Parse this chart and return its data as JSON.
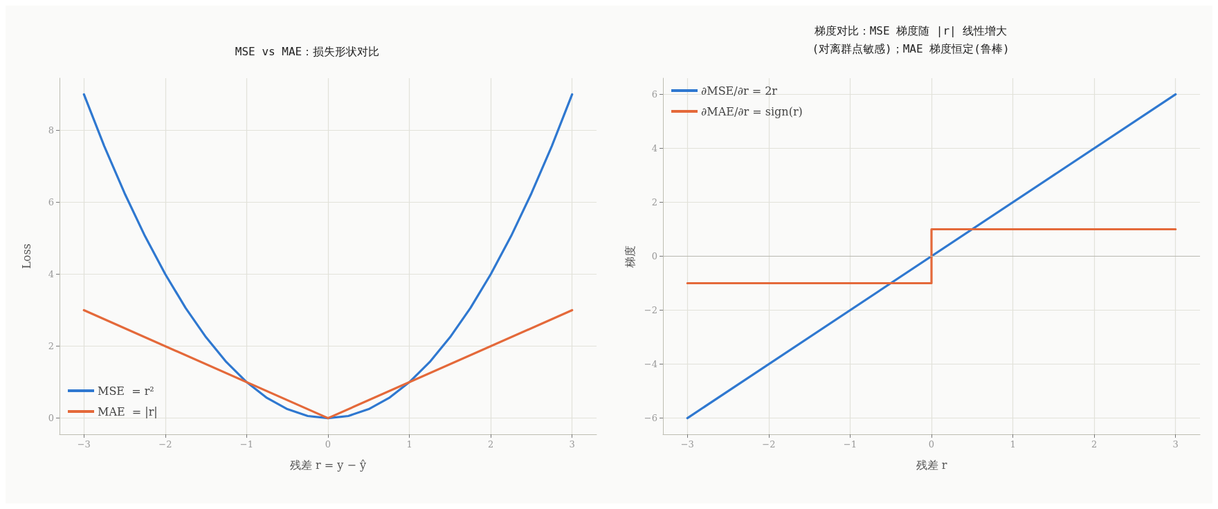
{
  "chart_data": [
    {
      "type": "line",
      "title": "MSE vs MAE：损失形状对比",
      "xlabel": "残差 r = y − ŷ",
      "ylabel": "Loss",
      "series": [
        {
          "name": "MSE  = r²",
          "color": "#2f78d0",
          "x": [
            -3,
            -2.75,
            -2.5,
            -2.25,
            -2,
            -1.75,
            -1.5,
            -1.25,
            -1,
            -0.75,
            -0.5,
            -0.25,
            0,
            0.25,
            0.5,
            0.75,
            1,
            1.25,
            1.5,
            1.75,
            2,
            2.25,
            2.5,
            2.75,
            3
          ],
          "values": [
            9,
            7.56,
            6.25,
            5.06,
            4,
            3.06,
            2.25,
            1.56,
            1,
            0.56,
            0.25,
            0.06,
            0,
            0.06,
            0.25,
            0.56,
            1,
            1.56,
            2.25,
            3.06,
            4,
            5.06,
            6.25,
            7.56,
            9
          ]
        },
        {
          "name": "MAE  = |r|",
          "color": "#e4693a",
          "x": [
            -3,
            0,
            3
          ],
          "values": [
            3,
            0,
            3
          ]
        }
      ],
      "xlim": [
        -3.3,
        3.3
      ],
      "xticks": [
        {
          "value": -3,
          "label": "−3"
        },
        {
          "value": -2,
          "label": "−2"
        },
        {
          "value": -1,
          "label": "−1"
        },
        0,
        1,
        2,
        3
      ],
      "ylim": [
        -0.45,
        9.45
      ],
      "yticks": [
        0,
        2,
        4,
        6,
        8
      ],
      "grid": true,
      "legend": "bottom left",
      "line_style": "solid",
      "marker": "none"
    },
    {
      "type": "line",
      "title": "梯度对比：MSE 梯度随 |r| 线性增大\n(对离群点敏感)；MAE 梯度恒定(鲁棒)",
      "xlabel": "残差 r",
      "ylabel": "梯度",
      "series": [
        {
          "name": "∂MSE/∂r = 2r",
          "color": "#2f78d0",
          "x": [
            -3,
            3
          ],
          "values": [
            -6,
            6
          ]
        },
        {
          "name": "∂MAE/∂r = sign(r)",
          "color": "#e4693a",
          "x": [
            -3,
            0,
            0,
            3
          ],
          "values": [
            -1,
            -1,
            1,
            1
          ]
        }
      ],
      "xlim": [
        -3.3,
        3.3
      ],
      "xticks": [
        {
          "value": -3,
          "label": "−3"
        },
        {
          "value": -2,
          "label": "−2"
        },
        {
          "value": -1,
          "label": "−1"
        },
        0,
        1,
        2,
        3
      ],
      "ylim": [
        -6.6,
        6.6
      ],
      "yticks": [
        {
          "value": -6,
          "label": "−6"
        },
        {
          "value": -4,
          "label": "−4"
        },
        {
          "value": -2,
          "label": "−2"
        },
        0,
        2,
        4,
        6
      ],
      "ref_lines": [
        {
          "axis": "y",
          "value": 0,
          "label": null,
          "color": "#b8b8b0"
        }
      ],
      "grid": true,
      "legend": "top left",
      "line_style": "solid",
      "marker": "none"
    }
  ]
}
